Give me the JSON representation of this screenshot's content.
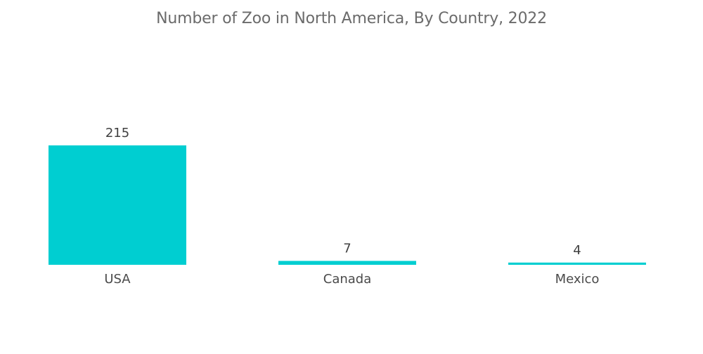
{
  "chart_data": {
    "type": "bar",
    "title": "Number of Zoo in North America, By Country, 2022",
    "categories": [
      "USA",
      "Canada",
      "Mexico"
    ],
    "values": [
      215,
      7,
      4
    ],
    "xlabel": "",
    "ylabel": "",
    "ylim": [
      0,
      215
    ],
    "grid": false,
    "legend": "none",
    "show_data_labels": true,
    "bar_color": "#00CED1"
  }
}
